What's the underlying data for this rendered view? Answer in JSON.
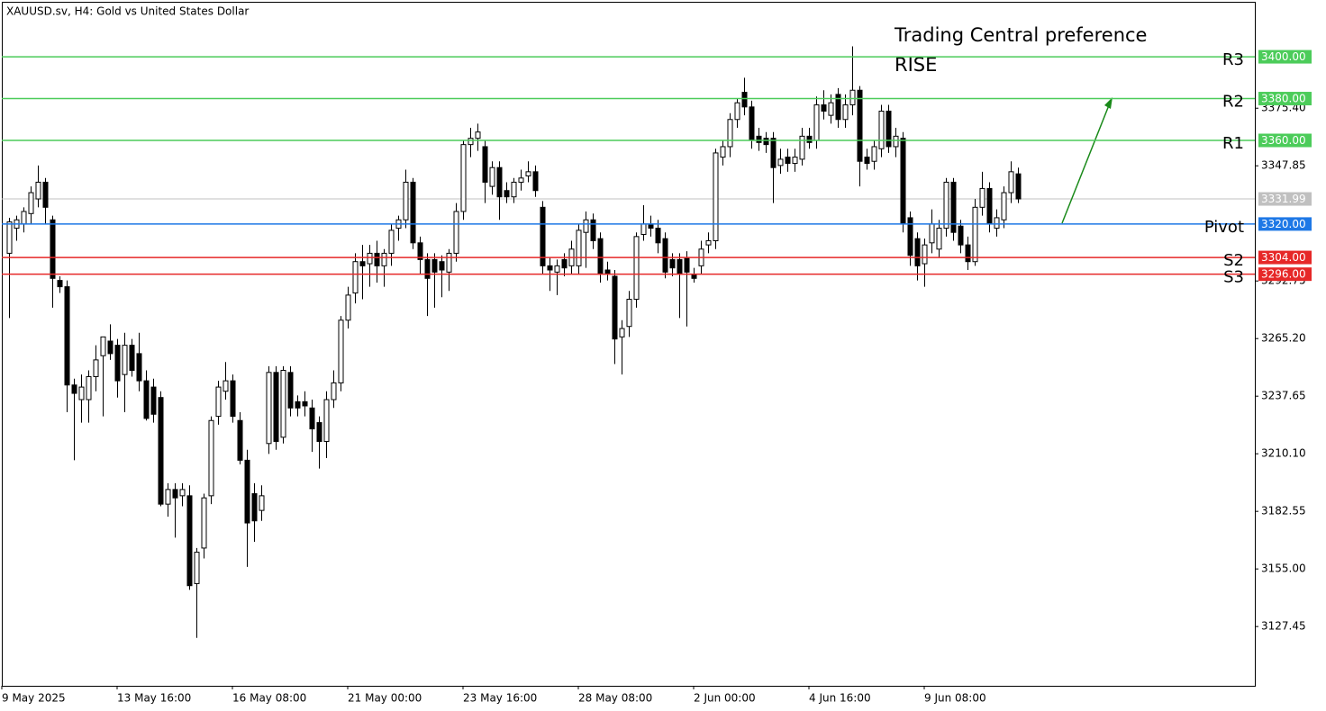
{
  "chart_data": {
    "type": "candlestick",
    "title": "XAUUSD.sv, H4:  Gold vs United States Dollar",
    "annotation": "Trading Central preference",
    "annotation_2": "RISE",
    "annotation_color": "#4ccc5a",
    "bull_color": "#ffffff",
    "bear_color": "#000000",
    "ylim": [
      3099.1,
      3426.3
    ],
    "yticks": [
      {
        "value": 3375.4,
        "label": "3375.40"
      },
      {
        "value": 3347.85,
        "label": "3347.85"
      },
      {
        "value": 3292.75,
        "label": "3292.75"
      },
      {
        "value": 3265.2,
        "label": "3265.20"
      },
      {
        "value": 3237.65,
        "label": "3237.65"
      },
      {
        "value": 3210.1,
        "label": "3210.10"
      },
      {
        "value": 3182.55,
        "label": "3182.55"
      },
      {
        "value": 3155,
        "label": "3155.00"
      },
      {
        "value": 3127.45,
        "label": "3127.45"
      }
    ],
    "last_price": 3331.99,
    "last_price_color": "#c0c0c0",
    "levels": [
      {
        "name": "R3",
        "value": 3400,
        "label": "3400.00",
        "color": "#4ccc5a"
      },
      {
        "name": "R2",
        "value": 3380,
        "label": "3380.00",
        "color": "#4ccc5a"
      },
      {
        "name": "R1",
        "value": 3360,
        "label": "3360.00",
        "color": "#4ccc5a"
      },
      {
        "name": "Pivot",
        "value": 3320,
        "label": "3320.00",
        "color": "#1e78e6"
      },
      {
        "name": "S2",
        "value": 3304,
        "label": "3304.00",
        "color": "#e62828"
      },
      {
        "name": "S3",
        "value": 3296,
        "label": "3296.00",
        "color": "#e62828"
      }
    ],
    "categories": [
      "9 May 2025",
      null,
      null,
      null,
      null,
      null,
      null,
      null,
      null,
      null,
      null,
      null,
      null,
      null,
      null,
      null,
      "13 May 16:00",
      null,
      null,
      null,
      null,
      null,
      null,
      null,
      null,
      null,
      null,
      null,
      null,
      null,
      null,
      null,
      "16 May 08:00",
      null,
      null,
      null,
      null,
      null,
      null,
      null,
      null,
      null,
      null,
      null,
      null,
      null,
      null,
      null,
      "21 May 00:00",
      null,
      null,
      null,
      null,
      null,
      null,
      null,
      null,
      null,
      null,
      null,
      null,
      null,
      null,
      null,
      "23 May 16:00",
      null,
      null,
      null,
      null,
      null,
      null,
      null,
      null,
      null,
      null,
      null,
      null,
      null,
      null,
      null,
      "28 May 08:00",
      null,
      null,
      null,
      null,
      null,
      null,
      null,
      null,
      null,
      null,
      null,
      null,
      null,
      null,
      null,
      "2 Jun 00:00",
      null,
      null,
      null,
      null,
      null,
      null,
      null,
      null,
      null,
      null,
      null,
      null,
      null,
      null,
      null,
      "4 Jun 16:00",
      null,
      null,
      null,
      null,
      null,
      null,
      null,
      null,
      null,
      null,
      null,
      null,
      null,
      null,
      null,
      "9 Jun 08:00",
      null,
      null,
      null,
      null,
      null,
      null,
      null,
      null,
      null,
      null,
      null,
      null
    ],
    "ohlc": [
      [
        3306,
        3323,
        3275,
        3321
      ],
      [
        3318,
        3324,
        3312,
        3322
      ],
      [
        3320,
        3328,
        3316,
        3326
      ],
      [
        3325,
        3338,
        3320,
        3335
      ],
      [
        3332,
        3348,
        3328,
        3340
      ],
      [
        3340,
        3342,
        3320,
        3328
      ],
      [
        3322,
        3324,
        3280,
        3294
      ],
      [
        3293,
        3295,
        3287,
        3290
      ],
      [
        3290,
        3293,
        3230,
        3243
      ],
      [
        3243,
        3246,
        3207,
        3239
      ],
      [
        3236,
        3248,
        3225,
        3242
      ],
      [
        3236,
        3250,
        3225,
        3247
      ],
      [
        3247,
        3262,
        3240,
        3255
      ],
      [
        3257,
        3266,
        3228,
        3266
      ],
      [
        3264,
        3272,
        3255,
        3258
      ],
      [
        3262,
        3265,
        3237,
        3245
      ],
      [
        3248,
        3268,
        3230,
        3262
      ],
      [
        3262,
        3265,
        3247,
        3250
      ],
      [
        3258,
        3268,
        3240,
        3245
      ],
      [
        3245,
        3250,
        3226,
        3227
      ],
      [
        3242,
        3246,
        3225,
        3229
      ],
      [
        3237,
        3240,
        3185,
        3186
      ],
      [
        3186,
        3196,
        3180,
        3193
      ],
      [
        3193,
        3196,
        3170,
        3189
      ],
      [
        3190,
        3196,
        3185,
        3193
      ],
      [
        3190,
        3195,
        3145,
        3147
      ],
      [
        3148,
        3165,
        3122,
        3163
      ],
      [
        3165,
        3191,
        3160,
        3189
      ],
      [
        3190,
        3228,
        3186,
        3226
      ],
      [
        3228,
        3245,
        3224,
        3242
      ],
      [
        3240,
        3254,
        3236,
        3245
      ],
      [
        3245,
        3248,
        3225,
        3228
      ],
      [
        3226,
        3230,
        3205,
        3207
      ],
      [
        3207,
        3212,
        3156,
        3177
      ],
      [
        3191,
        3196,
        3168,
        3178
      ],
      [
        3183,
        3195,
        3178,
        3190
      ],
      [
        3215,
        3252,
        3210,
        3249
      ],
      [
        3249,
        3252,
        3212,
        3216
      ],
      [
        3218,
        3252,
        3215,
        3250
      ],
      [
        3249,
        3252,
        3228,
        3232
      ],
      [
        3235,
        3238,
        3228,
        3232
      ],
      [
        3235,
        3240,
        3228,
        3233
      ],
      [
        3232,
        3236,
        3211,
        3222
      ],
      [
        3225,
        3228,
        3203,
        3216
      ],
      [
        3216,
        3240,
        3208,
        3236
      ],
      [
        3236,
        3250,
        3232,
        3244
      ],
      [
        3244,
        3276,
        3240,
        3274
      ],
      [
        3274,
        3290,
        3270,
        3286
      ],
      [
        3287,
        3306,
        3282,
        3302
      ],
      [
        3302,
        3310,
        3284,
        3300
      ],
      [
        3301,
        3310,
        3290,
        3306
      ],
      [
        3306,
        3312,
        3292,
        3300
      ],
      [
        3300,
        3308,
        3290,
        3306
      ],
      [
        3306,
        3320,
        3300,
        3317
      ],
      [
        3318,
        3324,
        3312,
        3322
      ],
      [
        3322,
        3346,
        3318,
        3340
      ],
      [
        3340,
        3342,
        3308,
        3311
      ],
      [
        3311,
        3314,
        3296,
        3303
      ],
      [
        3303,
        3306,
        3276,
        3294
      ],
      [
        3303,
        3306,
        3280,
        3297
      ],
      [
        3302,
        3305,
        3285,
        3298
      ],
      [
        3297,
        3308,
        3288,
        3306
      ],
      [
        3306,
        3330,
        3302,
        3326
      ],
      [
        3326,
        3360,
        3322,
        3358
      ],
      [
        3358,
        3366,
        3352,
        3361
      ],
      [
        3361,
        3368,
        3355,
        3364
      ],
      [
        3357,
        3360,
        3330,
        3340
      ],
      [
        3338,
        3350,
        3334,
        3347
      ],
      [
        3347,
        3350,
        3322,
        3333
      ],
      [
        3336,
        3340,
        3330,
        3333
      ],
      [
        3333,
        3342,
        3330,
        3340
      ],
      [
        3340,
        3346,
        3336,
        3342
      ],
      [
        3343,
        3350,
        3340,
        3345
      ],
      [
        3345,
        3348,
        3333,
        3336
      ],
      [
        3328,
        3331,
        3296,
        3300
      ],
      [
        3300,
        3304,
        3288,
        3298
      ],
      [
        3297,
        3303,
        3286,
        3300
      ],
      [
        3303,
        3306,
        3295,
        3299
      ],
      [
        3300,
        3312,
        3296,
        3308
      ],
      [
        3300,
        3320,
        3296,
        3317
      ],
      [
        3316,
        3326,
        3299,
        3322
      ],
      [
        3322,
        3325,
        3308,
        3312
      ],
      [
        3313,
        3316,
        3292,
        3296
      ],
      [
        3298,
        3302,
        3293,
        3296
      ],
      [
        3295,
        3298,
        3253,
        3265
      ],
      [
        3266,
        3274,
        3248,
        3270
      ],
      [
        3271,
        3288,
        3266,
        3284
      ],
      [
        3284,
        3316,
        3280,
        3314
      ],
      [
        3315,
        3329,
        3312,
        3320
      ],
      [
        3320,
        3324,
        3314,
        3318
      ],
      [
        3318,
        3322,
        3306,
        3311
      ],
      [
        3313,
        3316,
        3294,
        3297
      ],
      [
        3303,
        3306,
        3295,
        3299
      ],
      [
        3303,
        3306,
        3275,
        3296
      ],
      [
        3304,
        3307,
        3271,
        3297
      ],
      [
        3296,
        3299,
        3292,
        3294
      ],
      [
        3300,
        3312,
        3296,
        3308
      ],
      [
        3310,
        3316,
        3306,
        3312
      ],
      [
        3312,
        3356,
        3308,
        3354
      ],
      [
        3352,
        3360,
        3348,
        3357
      ],
      [
        3357,
        3373,
        3352,
        3370
      ],
      [
        3370,
        3380,
        3366,
        3378
      ],
      [
        3383,
        3390,
        3372,
        3376
      ],
      [
        3376,
        3379,
        3356,
        3360
      ],
      [
        3362,
        3366,
        3355,
        3359
      ],
      [
        3361,
        3364,
        3354,
        3358
      ],
      [
        3361,
        3364,
        3330,
        3347
      ],
      [
        3348,
        3356,
        3344,
        3351
      ],
      [
        3352,
        3356,
        3345,
        3349
      ],
      [
        3349,
        3356,
        3345,
        3352
      ],
      [
        3351,
        3366,
        3348,
        3362
      ],
      [
        3362,
        3366,
        3356,
        3359
      ],
      [
        3360,
        3381,
        3356,
        3377
      ],
      [
        3377,
        3384,
        3370,
        3374
      ],
      [
        3372,
        3382,
        3368,
        3378
      ],
      [
        3382,
        3385,
        3366,
        3370
      ],
      [
        3370,
        3382,
        3366,
        3377
      ],
      [
        3377,
        3405,
        3372,
        3384
      ],
      [
        3384,
        3386,
        3338,
        3350
      ],
      [
        3352,
        3356,
        3346,
        3349
      ],
      [
        3350,
        3360,
        3346,
        3357
      ],
      [
        3356,
        3377,
        3352,
        3374
      ],
      [
        3374,
        3377,
        3354,
        3357
      ],
      [
        3357,
        3366,
        3352,
        3362
      ],
      [
        3361,
        3364,
        3316,
        3320
      ],
      [
        3323,
        3326,
        3300,
        3305
      ],
      [
        3313,
        3316,
        3293,
        3300
      ],
      [
        3301,
        3313,
        3290,
        3310
      ],
      [
        3311,
        3327,
        3306,
        3320
      ],
      [
        3308,
        3322,
        3304,
        3318
      ],
      [
        3318,
        3342,
        3314,
        3340
      ],
      [
        3340,
        3342,
        3312,
        3316
      ],
      [
        3319,
        3322,
        3306,
        3310
      ],
      [
        3310,
        3314,
        3298,
        3302
      ],
      [
        3302,
        3332,
        3300,
        3328
      ],
      [
        3328,
        3345,
        3324,
        3337
      ],
      [
        3337,
        3340,
        3316,
        3320
      ],
      [
        3318,
        3327,
        3314,
        3323
      ],
      [
        3322,
        3338,
        3318,
        3335
      ],
      [
        3335,
        3350,
        3330,
        3345
      ],
      [
        3344,
        3347,
        3330,
        3332
      ]
    ]
  }
}
